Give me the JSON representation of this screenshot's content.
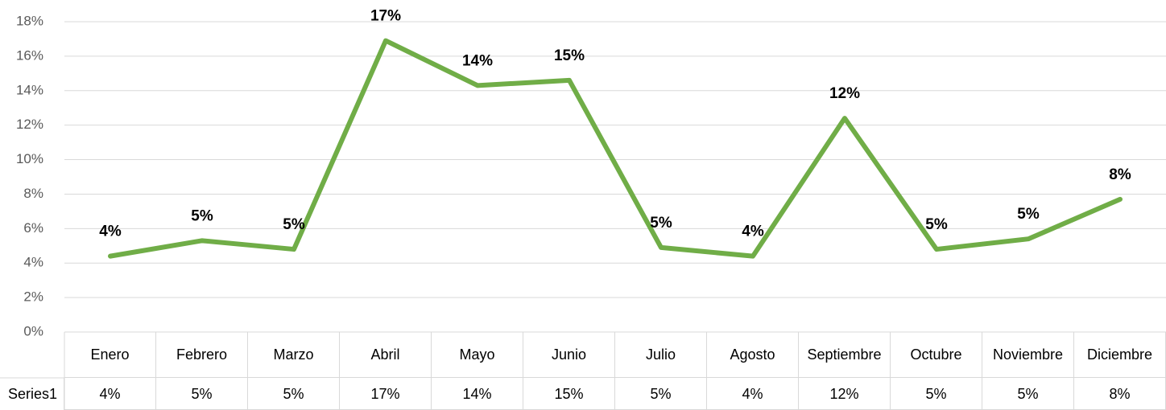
{
  "chart_data": {
    "type": "line",
    "categories": [
      "Enero",
      "Febrero",
      "Marzo",
      "Abril",
      "Mayo",
      "Junio",
      "Julio",
      "Agosto",
      "Septiembre",
      "Octubre",
      "Noviembre",
      "Diciembre"
    ],
    "series": [
      {
        "name": "Series1",
        "color": "#70ad47",
        "values": [
          4.4,
          5.3,
          4.8,
          16.9,
          14.3,
          14.6,
          4.9,
          4.4,
          12.4,
          4.8,
          5.4,
          7.7
        ],
        "value_labels": [
          "4%",
          "5%",
          "5%",
          "17%",
          "14%",
          "15%",
          "5%",
          "4%",
          "12%",
          "5%",
          "5%",
          "8%"
        ]
      }
    ],
    "ylim": [
      0,
      18
    ],
    "yticks": [
      {
        "value": 0,
        "label": "0%"
      },
      {
        "value": 2,
        "label": "2%"
      },
      {
        "value": 4,
        "label": "4%"
      },
      {
        "value": 6,
        "label": "6%"
      },
      {
        "value": 8,
        "label": "8%"
      },
      {
        "value": 10,
        "label": "10%"
      },
      {
        "value": 12,
        "label": "12%"
      },
      {
        "value": 14,
        "label": "14%"
      },
      {
        "value": 16,
        "label": "16%"
      },
      {
        "value": 18,
        "label": "18%"
      }
    ],
    "grid": true
  }
}
